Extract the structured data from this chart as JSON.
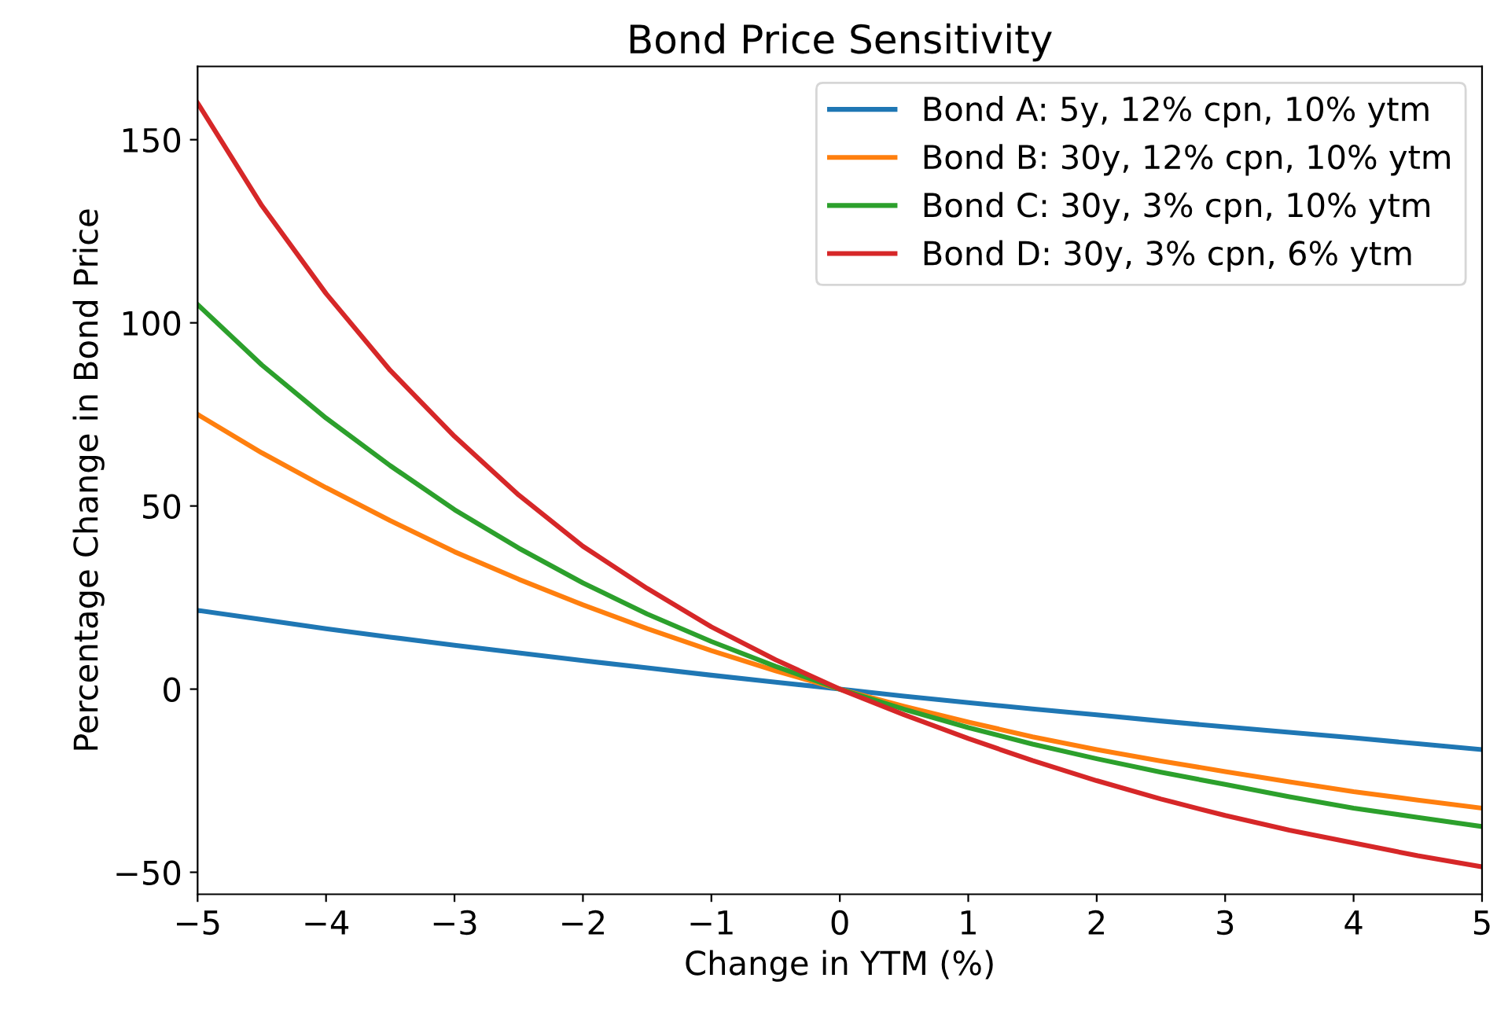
{
  "chart_data": {
    "type": "line",
    "title": "Bond Price Sensitivity",
    "xlabel": "Change in YTM (%)",
    "ylabel": "Percentage Change in Bond Price",
    "x": [
      -5,
      -4.5,
      -4,
      -3.5,
      -3,
      -2.5,
      -2,
      -1.5,
      -1,
      -0.5,
      0,
      0.5,
      1,
      1.5,
      2,
      2.5,
      3,
      3.5,
      4,
      4.5,
      5
    ],
    "series": [
      {
        "name": "Bond A: 5y, 12% cpn, 10% ytm",
        "color": "#1f77b4",
        "values": [
          21.5,
          19,
          16.5,
          14.2,
          12,
          9.9,
          7.8,
          5.8,
          3.8,
          1.9,
          0,
          -1.9,
          -3.7,
          -5.4,
          -7,
          -8.7,
          -10.3,
          -11.8,
          -13.3,
          -14.9,
          -16.5
        ]
      },
      {
        "name": "Bond B: 30y, 12% cpn, 10% ytm",
        "color": "#ff7f0e",
        "values": [
          75,
          64.5,
          55,
          46,
          37.5,
          30,
          23,
          16.5,
          10.5,
          5,
          0,
          -4.7,
          -9,
          -13,
          -16.5,
          -19.6,
          -22.5,
          -25.3,
          -28,
          -30.3,
          -32.5
        ]
      },
      {
        "name": "Bond C: 30y, 3% cpn, 10% ytm",
        "color": "#2ca02c",
        "values": [
          105,
          88.5,
          74,
          61,
          49,
          38.5,
          29,
          20.5,
          13,
          6.2,
          0,
          -5.5,
          -10.5,
          -15,
          -19,
          -22.7,
          -26,
          -29.4,
          -32.5,
          -35,
          -37.5
        ]
      },
      {
        "name": "Bond D: 30y, 3% cpn, 6% ytm",
        "color": "#d62728",
        "values": [
          160,
          132,
          108,
          87,
          69,
          53,
          39,
          27.5,
          17,
          8,
          0,
          -7,
          -13.5,
          -19.5,
          -25,
          -30,
          -34.5,
          -38.5,
          -42,
          -45.5,
          -48.5
        ]
      }
    ],
    "xlim": [
      -5,
      5
    ],
    "xticks": [
      -5,
      -4,
      -3,
      -2,
      -1,
      0,
      1,
      2,
      3,
      4,
      5
    ],
    "ylim": [
      -56,
      170
    ],
    "yticks": [
      -50,
      0,
      50,
      100,
      150
    ],
    "legend": "top right",
    "grid": false,
    "line_style": "solid",
    "marker": "none"
  }
}
